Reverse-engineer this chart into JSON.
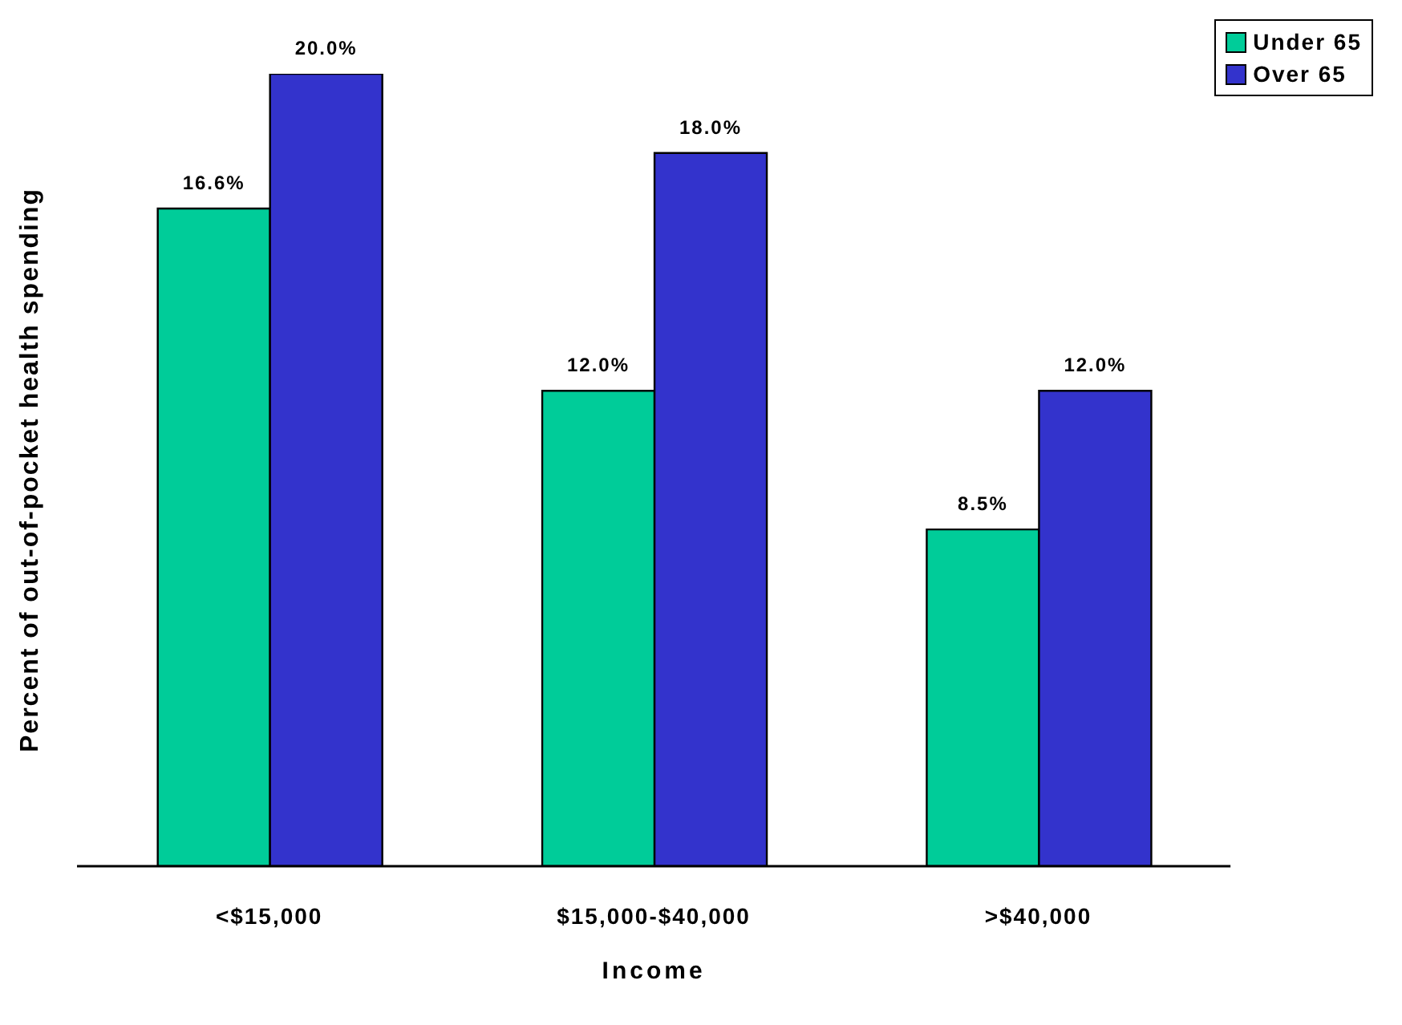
{
  "chart_data": {
    "type": "bar",
    "xlabel": "Income",
    "ylabel": "Percent of out-of-pocket health spending",
    "categories": [
      "<$15,000",
      "$15,000-$40,000",
      ">$40,000"
    ],
    "series": [
      {
        "name": "Under 65",
        "color": "#00cc99",
        "values": [
          16.6,
          12.0,
          8.5
        ],
        "value_labels": [
          "16.6%",
          "12.0%",
          "8.5%"
        ]
      },
      {
        "name": "Over 65",
        "color": "#3333cc",
        "values": [
          20.0,
          18.0,
          12.0
        ],
        "value_labels": [
          "20.0%",
          "18.0%",
          "12.0%"
        ]
      }
    ],
    "tick_labels": "x",
    "grid": false,
    "legend": "top right"
  }
}
